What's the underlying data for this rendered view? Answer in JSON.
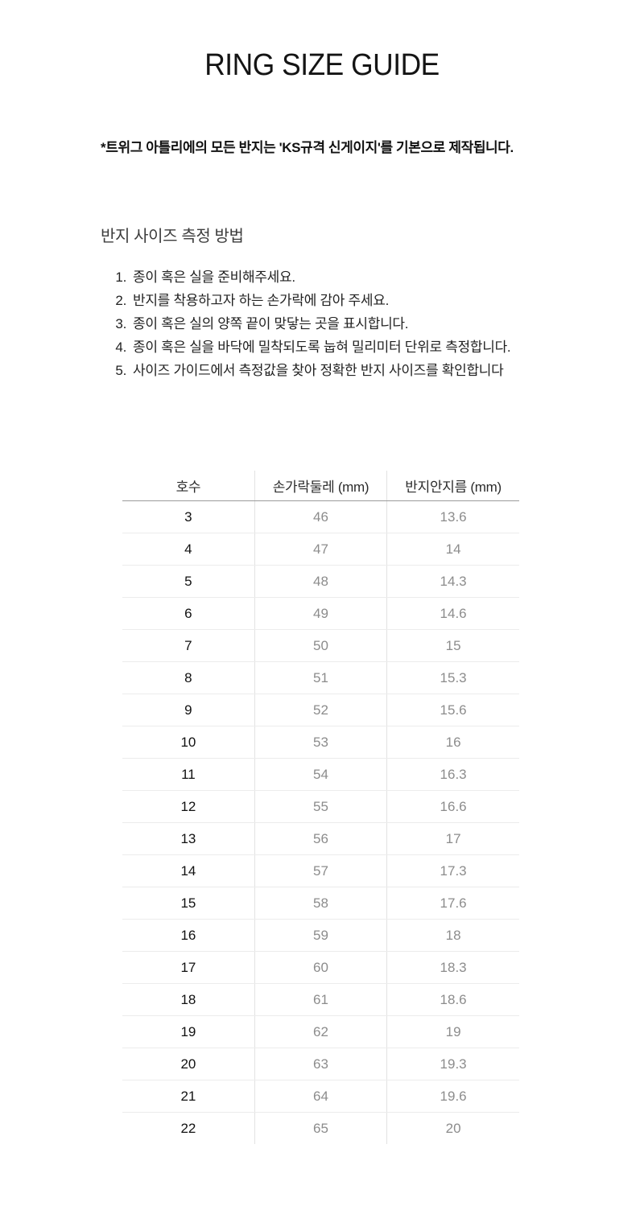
{
  "header": {
    "title": "RING SIZE GUIDE",
    "notice": "*트위그 아틀리에의 모든 반지는 'KS규격 신게이지'를 기본으로 제작됩니다."
  },
  "measure": {
    "heading": "반지 사이즈 측정 방법",
    "steps": [
      "종이 혹은 실을 준비해주세요.",
      "반지를 착용하고자 하는 손가락에 감아 주세요.",
      "종이 혹은 실의 양쪽 끝이 맞닿는 곳을 표시합니다.",
      "종이 혹은 실을 바닥에 밀착되도록 눕혀 밀리미터 단위로 측정합니다.",
      "사이즈 가이드에서 측정값을 찾아 정확한 반지 사이즈를 확인합니다"
    ]
  },
  "table": {
    "columns": [
      "호수",
      "손가락둘레 (mm)",
      "반지안지름 (mm)"
    ],
    "rows": [
      [
        "3",
        "46",
        "13.6"
      ],
      [
        "4",
        "47",
        "14"
      ],
      [
        "5",
        "48",
        "14.3"
      ],
      [
        "6",
        "49",
        "14.6"
      ],
      [
        "7",
        "50",
        "15"
      ],
      [
        "8",
        "51",
        "15.3"
      ],
      [
        "9",
        "52",
        "15.6"
      ],
      [
        "10",
        "53",
        "16"
      ],
      [
        "11",
        "54",
        "16.3"
      ],
      [
        "12",
        "55",
        "16.6"
      ],
      [
        "13",
        "56",
        "17"
      ],
      [
        "14",
        "57",
        "17.3"
      ],
      [
        "15",
        "58",
        "17.6"
      ],
      [
        "16",
        "59",
        "18"
      ],
      [
        "17",
        "60",
        "18.3"
      ],
      [
        "18",
        "61",
        "18.6"
      ],
      [
        "19",
        "62",
        "19"
      ],
      [
        "20",
        "63",
        "19.3"
      ],
      [
        "21",
        "64",
        "19.6"
      ],
      [
        "22",
        "65",
        "20"
      ]
    ]
  },
  "colors": {
    "background": "#ffffff",
    "text_primary": "#1a1a1a",
    "text_secondary": "#8c8c8c",
    "heading_gray": "#3c3c3c",
    "header_border": "#9b9b9b",
    "row_border": "#ececec",
    "column_divider": "#e2e2e2"
  }
}
